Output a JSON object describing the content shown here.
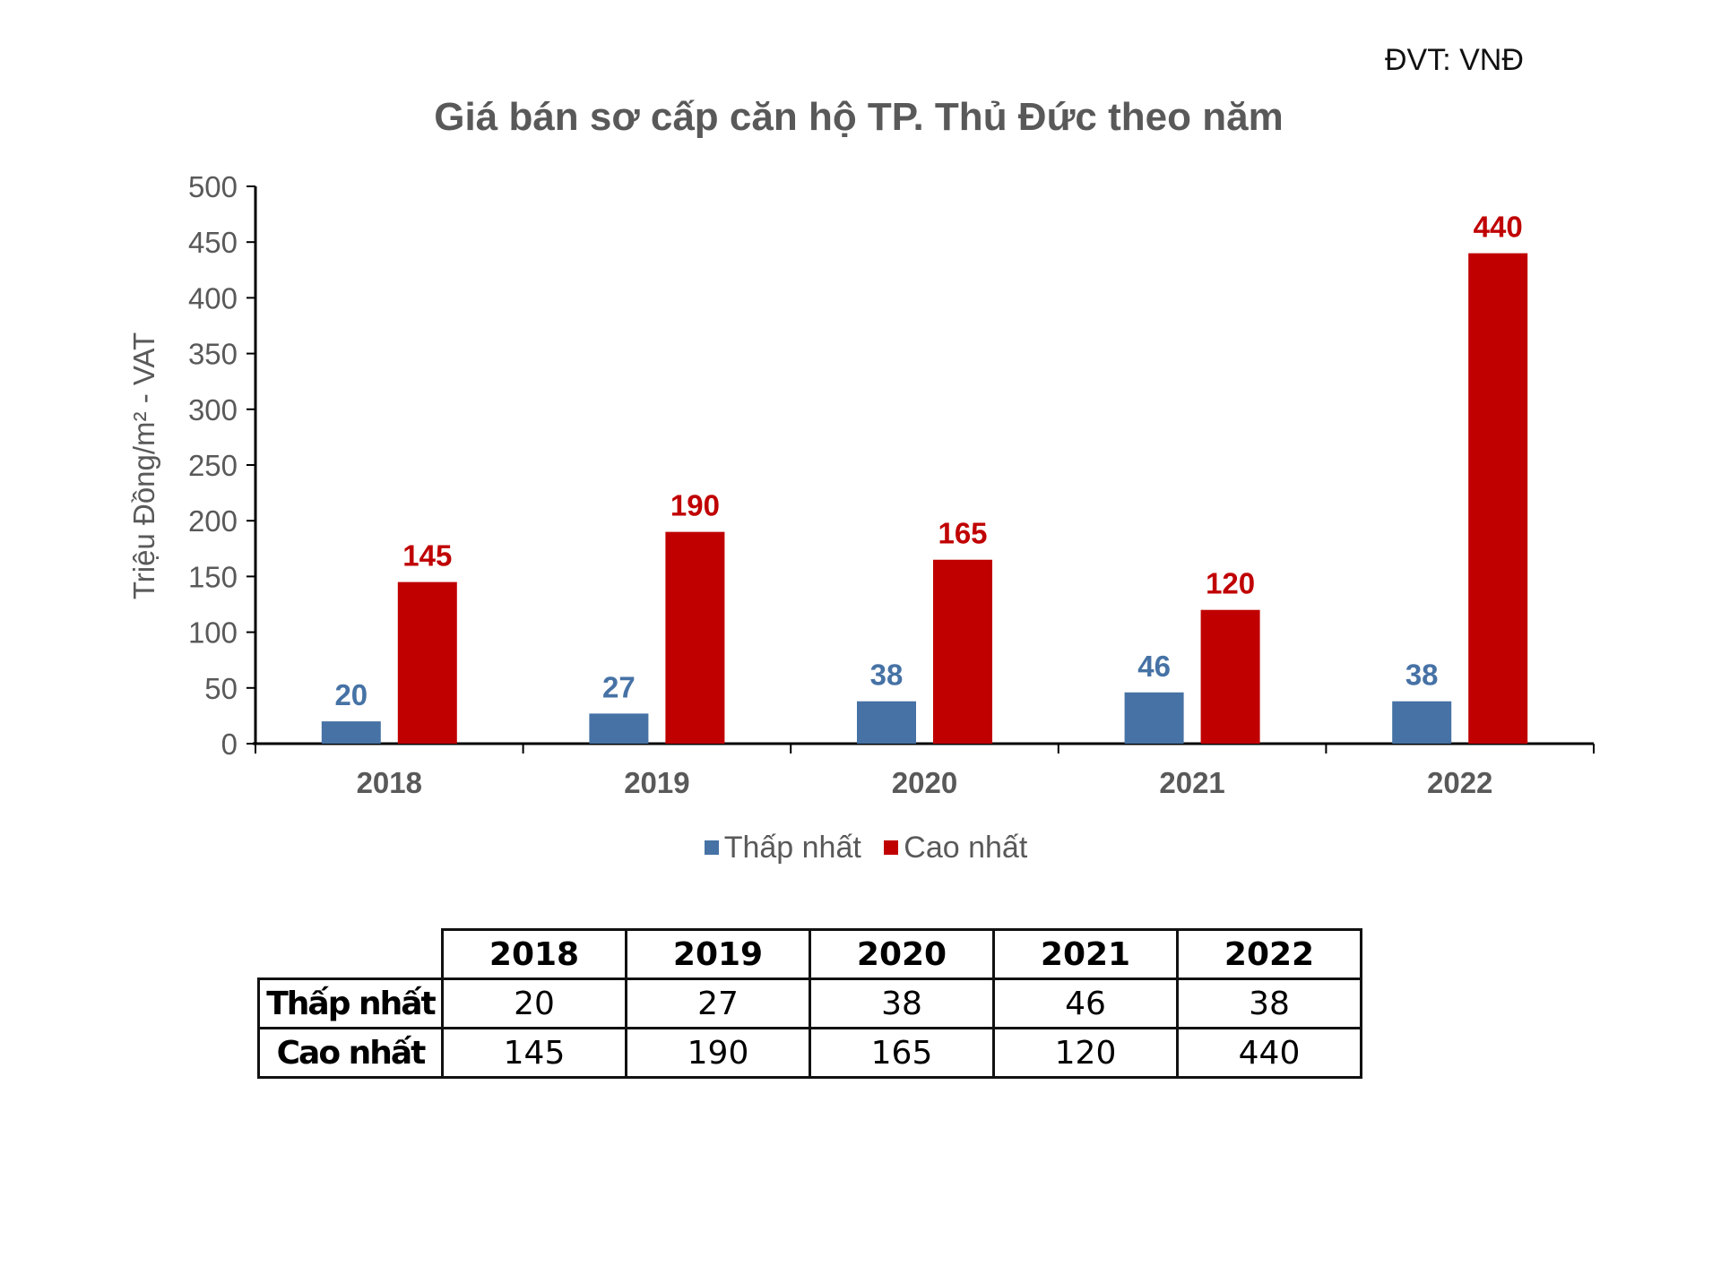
{
  "unit_note": "ĐVT: VNĐ",
  "chart_data": {
    "type": "bar",
    "title": "Giá bán sơ cấp căn hộ TP. Thủ Đức theo năm",
    "xlabel": "",
    "ylabel": "Triệu Đồng/m² - VAT",
    "ylim": [
      0,
      500
    ],
    "yticks": [
      0,
      50,
      100,
      150,
      200,
      250,
      300,
      350,
      400,
      450,
      500
    ],
    "grid": false,
    "legend_position": "bottom",
    "categories": [
      "2018",
      "2019",
      "2020",
      "2021",
      "2022"
    ],
    "series": [
      {
        "name": "Thấp nhất",
        "color": "#4672A5",
        "values": [
          20,
          27,
          38,
          46,
          38
        ]
      },
      {
        "name": "Cao nhất",
        "color": "#C00000",
        "values": [
          145,
          190,
          165,
          120,
          440
        ]
      }
    ]
  },
  "table": {
    "header": [
      "2018",
      "2019",
      "2020",
      "2021",
      "2022"
    ],
    "rows": [
      {
        "label": "Thấp nhất",
        "values": [
          "20",
          "27",
          "38",
          "46",
          "38"
        ]
      },
      {
        "label": "Cao nhất",
        "values": [
          "145",
          "190",
          "165",
          "120",
          "440"
        ]
      }
    ]
  }
}
